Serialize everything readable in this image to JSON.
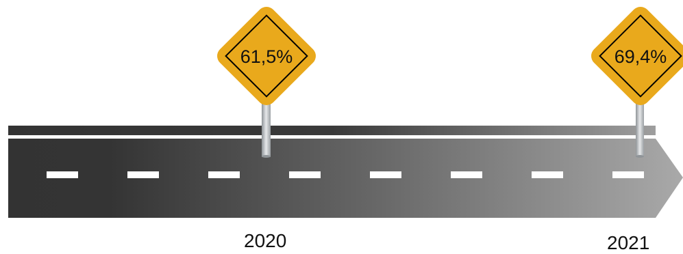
{
  "milestones": [
    {
      "value": "61,5%",
      "year": "2020"
    },
    {
      "value": "69,4%",
      "year": "2021"
    }
  ],
  "colors": {
    "road_dark": "#333333",
    "road_light": "#a6a6a6",
    "road_stripe": "#ffffff",
    "sign_fill": "#e9a91c",
    "sign_border": "#000000",
    "pole": "#c9cdd0"
  }
}
